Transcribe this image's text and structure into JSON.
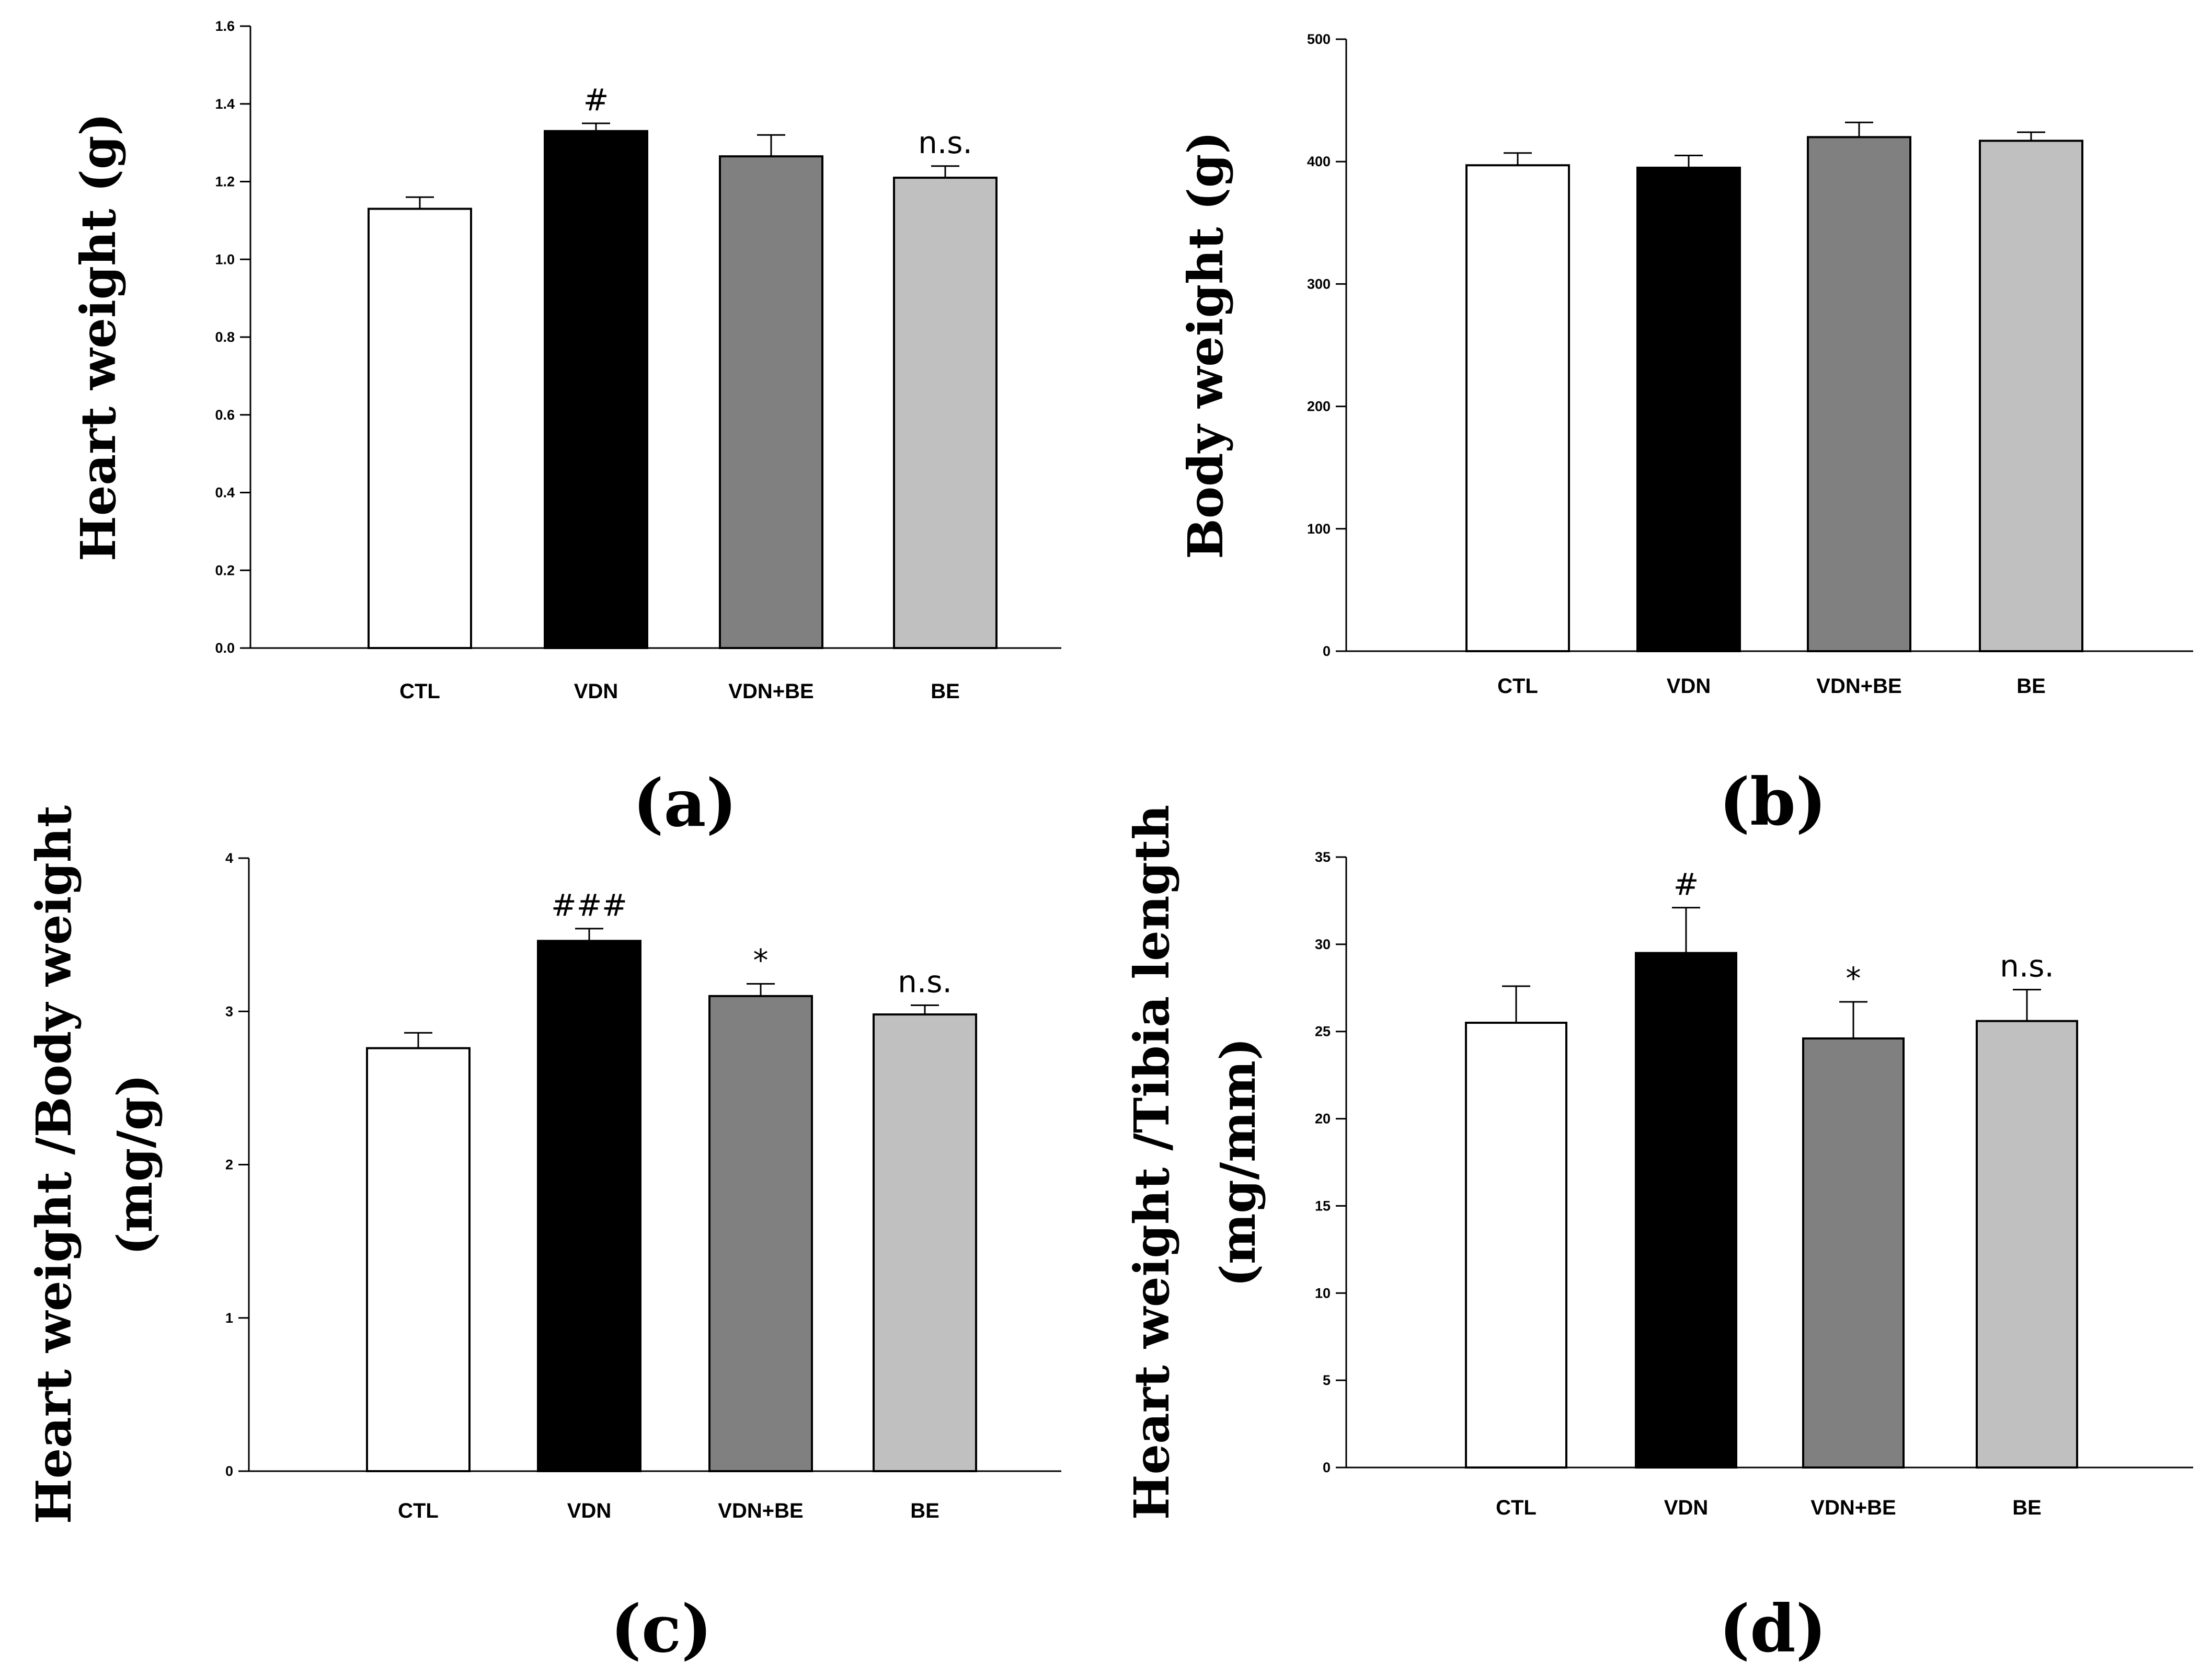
{
  "chart_data": [
    {
      "panel_label": "(a)",
      "type": "bar",
      "ylabel_lines": [
        "Heart weight (g)"
      ],
      "categories": [
        "CTL",
        "VDN",
        "VDN+BE",
        "BE"
      ],
      "values": [
        1.13,
        1.33,
        1.265,
        1.21
      ],
      "errors": [
        0.03,
        0.02,
        0.055,
        0.03
      ],
      "annotations": [
        "",
        "#",
        "",
        "n.s."
      ],
      "colors": [
        "#ffffff",
        "#000000",
        "#808080",
        "#c0c0c0"
      ],
      "ylim": [
        0,
        1.6
      ],
      "yticks": [
        "0.0",
        "0.2",
        "0.4",
        "0.6",
        "0.8",
        "1.0",
        "1.2",
        "1.4",
        "1.6"
      ]
    },
    {
      "panel_label": "(b)",
      "type": "bar",
      "ylabel_lines": [
        "Body weight (g)"
      ],
      "categories": [
        "CTL",
        "VDN",
        "VDN+BE",
        "BE"
      ],
      "values": [
        397,
        395,
        420,
        417
      ],
      "errors": [
        10,
        10,
        12,
        7
      ],
      "annotations": [
        "",
        "",
        "",
        ""
      ],
      "colors": [
        "#ffffff",
        "#000000",
        "#808080",
        "#c0c0c0"
      ],
      "ylim": [
        0,
        500
      ],
      "yticks": [
        "0",
        "100",
        "200",
        "300",
        "400",
        "500"
      ]
    },
    {
      "panel_label": "(c)",
      "type": "bar",
      "ylabel_lines": [
        "Heart weight /Body weight",
        "(mg/g)"
      ],
      "categories": [
        "CTL",
        "VDN",
        "VDN+BE",
        "BE"
      ],
      "values": [
        2.76,
        3.46,
        3.1,
        2.98
      ],
      "errors": [
        0.1,
        0.08,
        0.08,
        0.06
      ],
      "annotations": [
        "",
        "###",
        "*",
        "n.s."
      ],
      "colors": [
        "#ffffff",
        "#000000",
        "#808080",
        "#c0c0c0"
      ],
      "ylim": [
        0,
        4
      ],
      "yticks": [
        "0",
        "1",
        "2",
        "3",
        "4"
      ]
    },
    {
      "panel_label": "(d)",
      "type": "bar",
      "ylabel_lines": [
        "Heart weight /Tibia length",
        "(mg/mm)"
      ],
      "categories": [
        "CTL",
        "VDN",
        "VDN+BE",
        "BE"
      ],
      "values": [
        25.5,
        29.5,
        24.6,
        25.6
      ],
      "errors": [
        2.1,
        2.6,
        2.1,
        1.8
      ],
      "annotations": [
        "",
        "#",
        "*",
        "n.s."
      ],
      "colors": [
        "#ffffff",
        "#000000",
        "#808080",
        "#c0c0c0"
      ],
      "ylim": [
        0,
        35
      ],
      "yticks": [
        "0",
        "5",
        "10",
        "15",
        "20",
        "25",
        "30",
        "35"
      ]
    }
  ]
}
